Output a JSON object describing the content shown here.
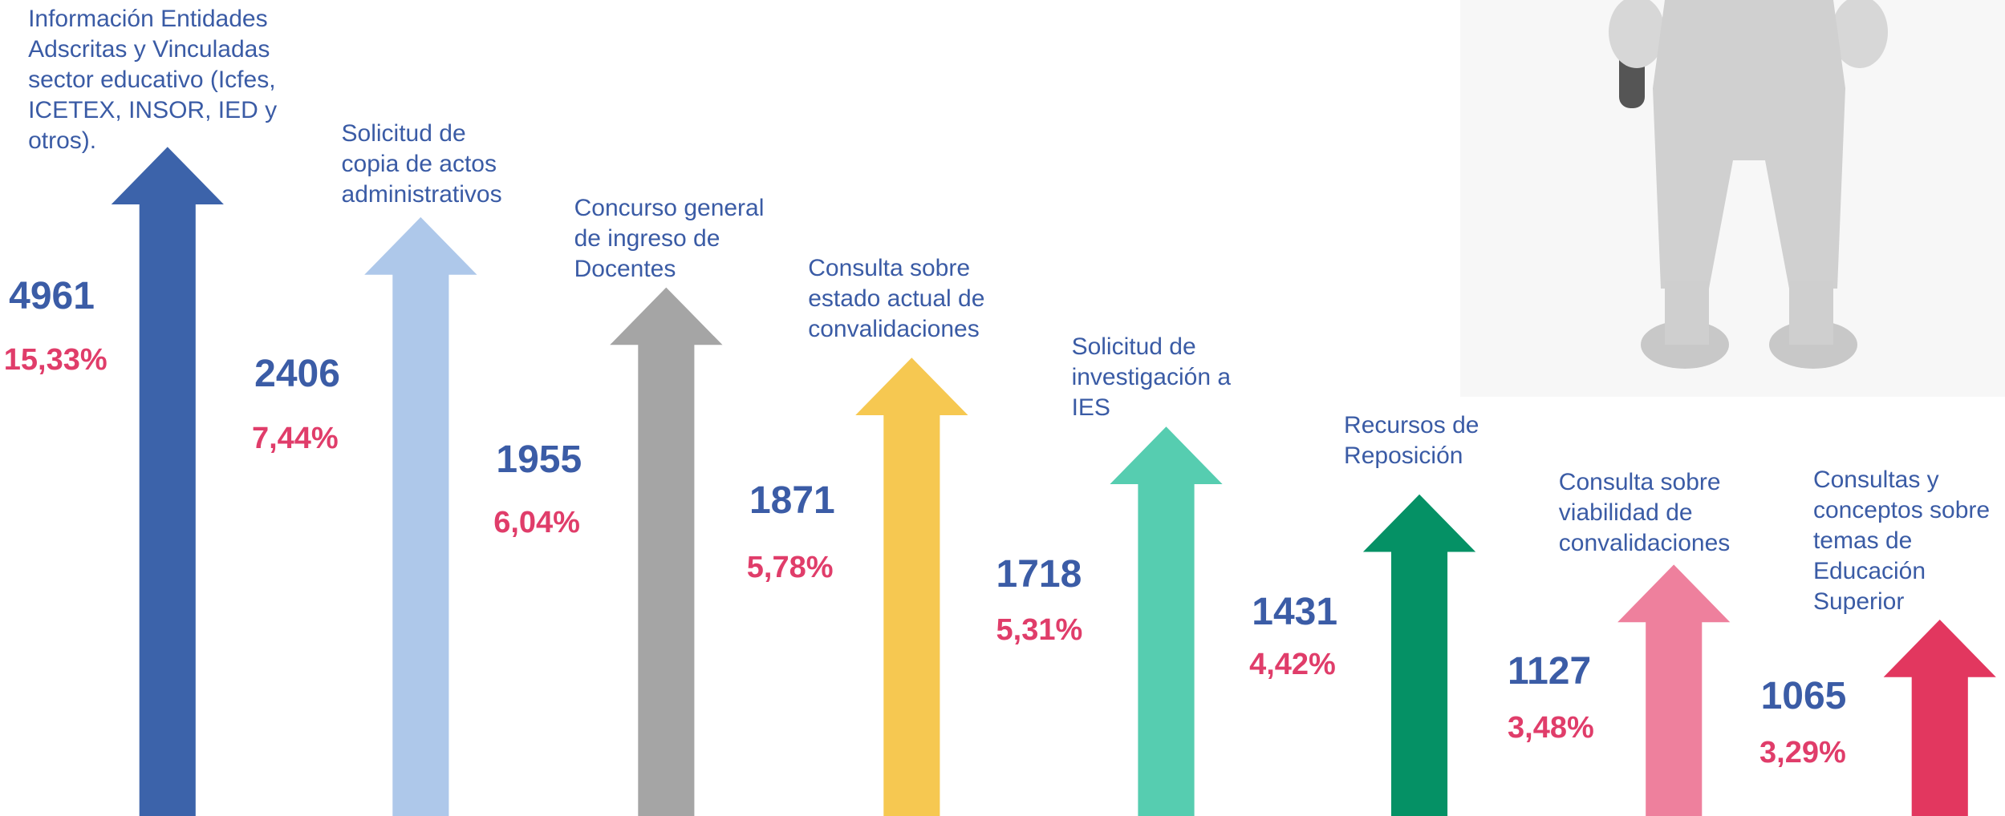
{
  "items": [
    {
      "label": "Información Entidades Adscritas y Vinculadas sector educativo (Icfes, ICETEX, INSOR, IED y otros).",
      "count": 4961,
      "percent": "15,33%",
      "color": "#3c63aa"
    },
    {
      "label": "Solicitud de copia de actos administrativos",
      "count": 2406,
      "percent": "7,44%",
      "color": "#aec8ea"
    },
    {
      "label": "Concurso general de ingreso de Docentes",
      "count": 1955,
      "percent": "6,04%",
      "color": "#a5a5a5"
    },
    {
      "label": "Consulta sobre estado actual de convalidaciones",
      "count": 1871,
      "percent": "5,78%",
      "color": "#f6c851"
    },
    {
      "label": "Solicitud de investigación a IES",
      "count": 1718,
      "percent": "5,31%",
      "color": "#56cdb0"
    },
    {
      "label": "Recursos de Reposición",
      "count": 1431,
      "percent": "4,42%",
      "color": "#059165"
    },
    {
      "label": "Consulta sobre viabilidad de convalidaciones",
      "count": 1127,
      "percent": "3,48%",
      "color": "#ee809d"
    },
    {
      "label": "Consultas y conceptos sobre temas de Educación Superior",
      "count": 1065,
      "percent": "3,29%",
      "color": "#e2375f"
    }
  ]
}
